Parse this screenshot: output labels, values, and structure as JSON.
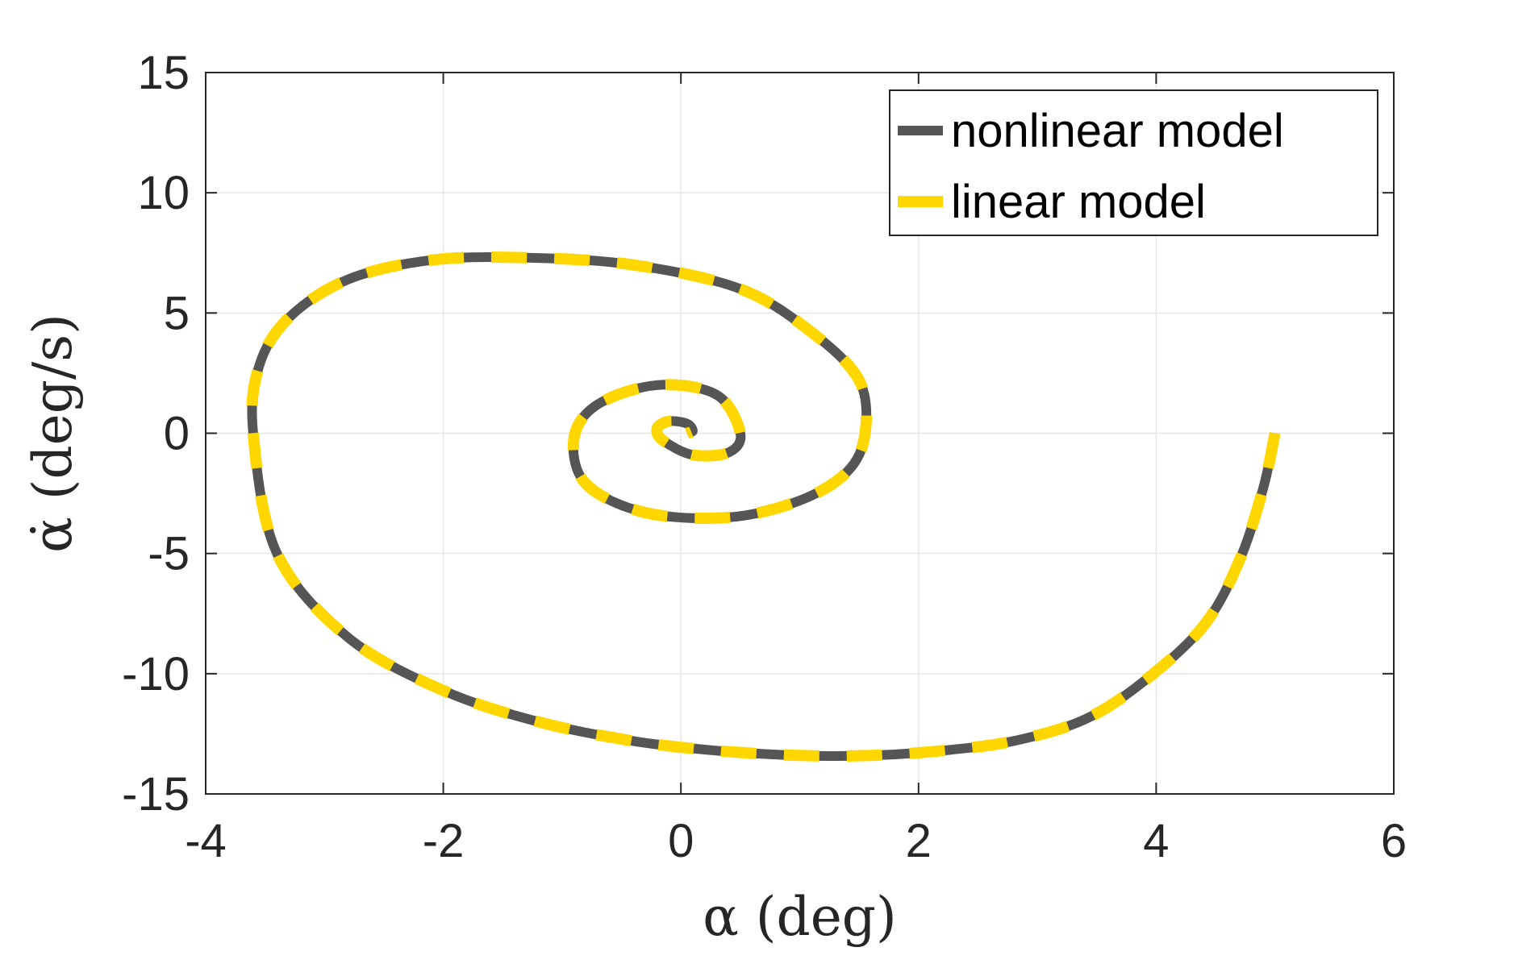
{
  "chart_data": {
    "type": "line",
    "title": "",
    "xlabel": "α (deg)",
    "ylabel": "α̇ (deg/s)",
    "xlim": [
      -4,
      6
    ],
    "ylim": [
      -15,
      15
    ],
    "xticks": [
      -4,
      -2,
      0,
      2,
      4,
      6
    ],
    "yticks": [
      -15,
      -10,
      -5,
      0,
      5,
      10,
      15
    ],
    "xtick_labels": [
      "-4",
      "-2",
      "0",
      "2",
      "4",
      "6"
    ],
    "ytick_labels": [
      "-15",
      "-10",
      "-5",
      "0",
      "5",
      "10",
      "15"
    ],
    "grid": true,
    "legend_position": "top-right",
    "series": [
      {
        "name": "nonlinear model",
        "color": "#555555",
        "style": "solid",
        "x": [
          5.0,
          4.9,
          4.7,
          4.4,
          3.9,
          3.4,
          2.8,
          2.2,
          1.6,
          1.0,
          0.3,
          -0.4,
          -1.2,
          -2.0,
          -2.8,
          -3.4,
          -3.6,
          -3.55,
          -3.3,
          -2.8,
          -2.1,
          -1.3,
          -0.4,
          0.5,
          1.1,
          1.5,
          1.55,
          1.4,
          1.0,
          0.4,
          -0.3,
          -0.8,
          -0.9,
          -0.7,
          -0.2,
          0.3,
          0.5,
          0.4,
          0.1,
          -0.15,
          -0.2,
          -0.1,
          0.05,
          0.1,
          0.05
        ],
        "y": [
          0,
          -2.3,
          -5.3,
          -8.0,
          -10.3,
          -11.9,
          -12.8,
          -13.2,
          -13.4,
          -13.4,
          -13.2,
          -12.8,
          -12.0,
          -10.7,
          -8.5,
          -5.0,
          0.0,
          2.8,
          4.8,
          6.4,
          7.2,
          7.3,
          7.0,
          6.0,
          4.2,
          2.2,
          0.0,
          -1.6,
          -2.8,
          -3.5,
          -3.3,
          -2.1,
          -0.2,
          1.2,
          2.0,
          1.6,
          0.0,
          -0.8,
          -0.9,
          -0.3,
          0.2,
          0.5,
          0.4,
          0.1,
          0.0
        ]
      },
      {
        "name": "linear model",
        "color": "#FFD700",
        "style": "dashed",
        "x": [
          5.0,
          4.9,
          4.7,
          4.4,
          3.9,
          3.4,
          2.8,
          2.2,
          1.6,
          1.0,
          0.3,
          -0.4,
          -1.2,
          -2.0,
          -2.8,
          -3.4,
          -3.6,
          -3.55,
          -3.3,
          -2.8,
          -2.1,
          -1.3,
          -0.4,
          0.5,
          1.1,
          1.5,
          1.55,
          1.4,
          1.0,
          0.4,
          -0.3,
          -0.8,
          -0.9,
          -0.7,
          -0.2,
          0.3,
          0.5,
          0.4,
          0.1,
          -0.15,
          -0.2,
          -0.1,
          0.05,
          0.1,
          0.05
        ],
        "y": [
          0,
          -2.3,
          -5.3,
          -8.0,
          -10.3,
          -11.9,
          -12.8,
          -13.2,
          -13.4,
          -13.4,
          -13.2,
          -12.8,
          -12.0,
          -10.7,
          -8.5,
          -5.0,
          0.0,
          2.8,
          4.8,
          6.4,
          7.2,
          7.3,
          7.0,
          6.0,
          4.2,
          2.2,
          0.0,
          -1.6,
          -2.8,
          -3.5,
          -3.3,
          -2.1,
          -0.2,
          1.2,
          2.0,
          1.6,
          0.0,
          -0.8,
          -0.9,
          -0.3,
          0.2,
          0.5,
          0.4,
          0.1,
          0.0
        ]
      }
    ]
  }
}
